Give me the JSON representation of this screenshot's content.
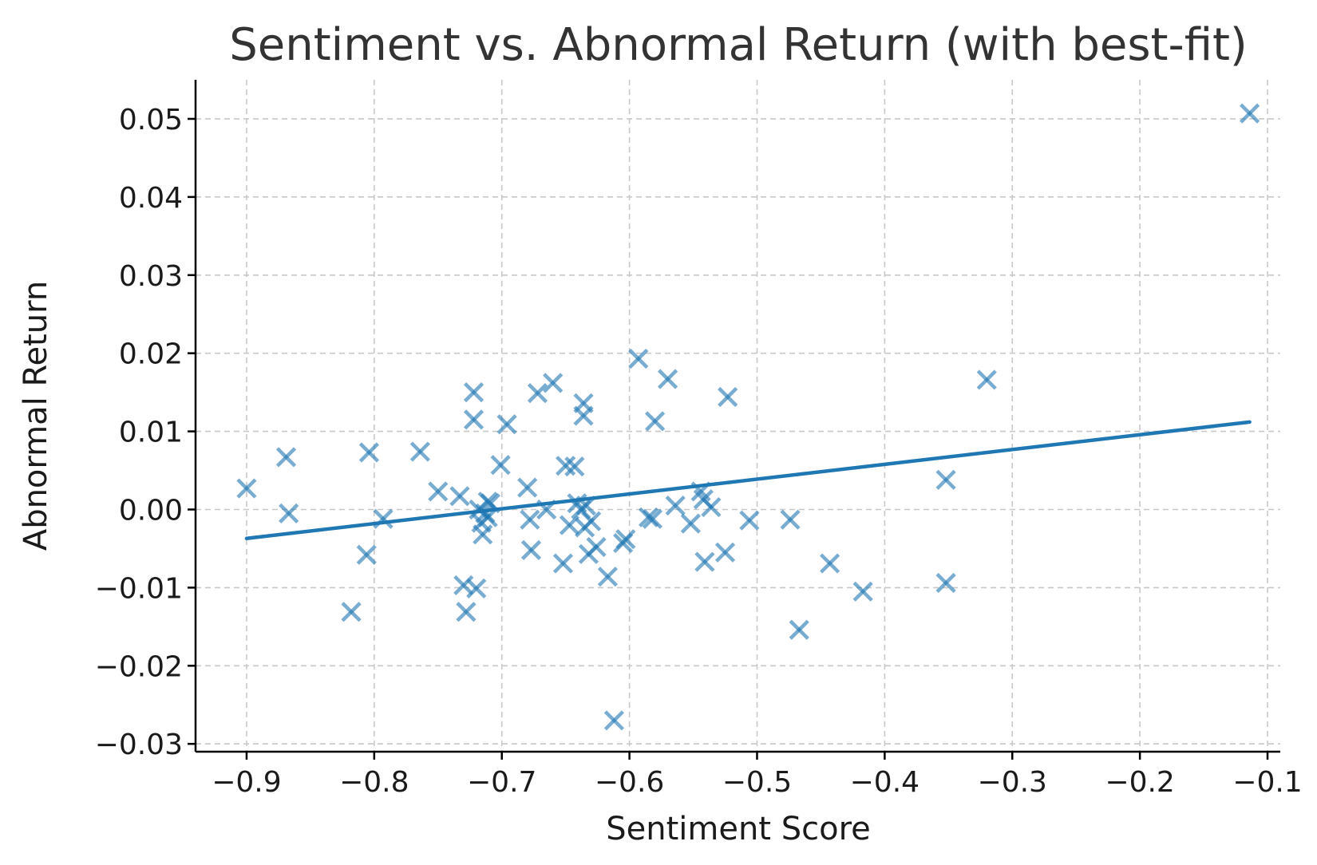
{
  "chart_data": {
    "type": "scatter",
    "title": "Sentiment vs. Abnormal Return (with best-fit)",
    "xlabel": "Sentiment Score",
    "ylabel": "Abnormal Return",
    "xlim": [
      -0.94,
      -0.09
    ],
    "ylim": [
      -0.031,
      0.055
    ],
    "xticks": [
      -0.9,
      -0.8,
      -0.7,
      -0.6,
      -0.5,
      -0.4,
      -0.3,
      -0.2,
      -0.1
    ],
    "xtick_labels": [
      "−0.9",
      "−0.8",
      "−0.7",
      "−0.6",
      "−0.5",
      "−0.4",
      "−0.3",
      "−0.2",
      "−0.1"
    ],
    "yticks": [
      -0.03,
      -0.02,
      -0.01,
      0.0,
      0.01,
      0.02,
      0.03,
      0.04,
      0.05
    ],
    "ytick_labels": [
      "−0.03",
      "−0.02",
      "−0.01",
      "0.00",
      "0.01",
      "0.02",
      "0.03",
      "0.04",
      "0.05"
    ],
    "grid": true,
    "marker": "x",
    "color": "#1f77b4",
    "series": [
      {
        "points": [
          [
            -0.9,
            0.0027
          ],
          [
            -0.869,
            0.0067
          ],
          [
            -0.867,
            -0.0005
          ],
          [
            -0.818,
            -0.0131
          ],
          [
            -0.806,
            -0.0058
          ],
          [
            -0.804,
            0.0073
          ],
          [
            -0.793,
            -0.0012
          ],
          [
            -0.764,
            0.0074
          ],
          [
            -0.75,
            0.0023
          ],
          [
            -0.733,
            0.0017
          ],
          [
            -0.73,
            -0.0097
          ],
          [
            -0.728,
            -0.0131
          ],
          [
            -0.722,
            0.015
          ],
          [
            -0.722,
            0.0115
          ],
          [
            -0.72,
            -0.0101
          ],
          [
            -0.718,
            0.0
          ],
          [
            -0.716,
            -0.0017
          ],
          [
            -0.715,
            -0.0032
          ],
          [
            -0.713,
            -0.0005
          ],
          [
            -0.711,
            0.001
          ],
          [
            -0.711,
            -0.001
          ],
          [
            -0.709,
            0.0008
          ],
          [
            -0.701,
            0.0057
          ],
          [
            -0.696,
            0.0109
          ],
          [
            -0.68,
            0.0028
          ],
          [
            -0.678,
            -0.0013
          ],
          [
            -0.677,
            -0.0052
          ],
          [
            -0.672,
            0.0149
          ],
          [
            -0.665,
            0.0
          ],
          [
            -0.66,
            0.0162
          ],
          [
            -0.652,
            -0.0069
          ],
          [
            -0.65,
            0.0056
          ],
          [
            -0.647,
            -0.002
          ],
          [
            -0.643,
            0.0055
          ],
          [
            -0.641,
            0.0008
          ],
          [
            -0.638,
            0.0
          ],
          [
            -0.636,
            0.0136
          ],
          [
            -0.636,
            0.012
          ],
          [
            -0.635,
            -0.0023
          ],
          [
            -0.634,
            0.0005
          ],
          [
            -0.632,
            -0.0057
          ],
          [
            -0.63,
            -0.0015
          ],
          [
            -0.626,
            -0.0048
          ],
          [
            -0.617,
            -0.0086
          ],
          [
            -0.612,
            -0.027
          ],
          [
            -0.605,
            -0.0043
          ],
          [
            -0.603,
            -0.0038
          ],
          [
            -0.593,
            0.0193
          ],
          [
            -0.585,
            -0.001
          ],
          [
            -0.582,
            -0.0012
          ],
          [
            -0.58,
            0.0113
          ],
          [
            -0.57,
            0.0167
          ],
          [
            -0.564,
            0.0005
          ],
          [
            -0.552,
            -0.0018
          ],
          [
            -0.544,
            0.0023
          ],
          [
            -0.542,
            0.0013
          ],
          [
            -0.541,
            -0.0067
          ],
          [
            -0.536,
            0.0003
          ],
          [
            -0.525,
            -0.0055
          ],
          [
            -0.523,
            0.0144
          ],
          [
            -0.506,
            -0.0014
          ],
          [
            -0.474,
            -0.0013
          ],
          [
            -0.467,
            -0.0154
          ],
          [
            -0.443,
            -0.0069
          ],
          [
            -0.417,
            -0.0105
          ],
          [
            -0.352,
            0.0038
          ],
          [
            -0.352,
            -0.0094
          ],
          [
            -0.32,
            0.0166
          ],
          [
            -0.114,
            0.0507
          ]
        ]
      }
    ],
    "best_fit": {
      "x": [
        -0.9,
        -0.114
      ],
      "y": [
        -0.0037,
        0.0112
      ]
    }
  }
}
